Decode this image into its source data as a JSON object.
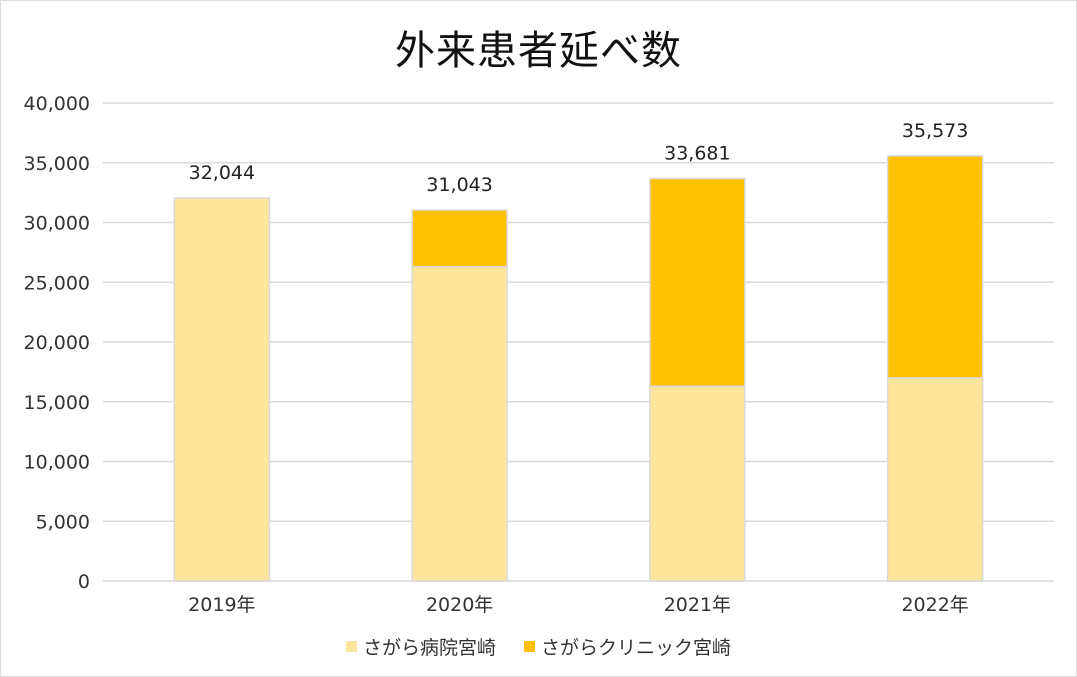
{
  "chart_data": {
    "type": "bar",
    "stacked": true,
    "title": "外来患者延べ数",
    "xlabel": "",
    "ylabel": "",
    "categories": [
      "2019年",
      "2020年",
      "2021年",
      "2022年"
    ],
    "series": [
      {
        "name": "さがら病院宮崎",
        "color": "#fde59b",
        "values": [
          32044,
          26300,
          16300,
          17000
        ]
      },
      {
        "name": "さがらクリニック宮崎",
        "color": "#ffc000",
        "values": [
          0,
          4743,
          17381,
          18573
        ]
      }
    ],
    "totals": [
      32044,
      31043,
      33681,
      35573
    ],
    "total_labels": [
      "32,044",
      "31,043",
      "33,681",
      "35,573"
    ],
    "ylim": [
      0,
      40000
    ],
    "yticks": [
      0,
      5000,
      10000,
      15000,
      20000,
      25000,
      30000,
      35000,
      40000
    ],
    "ytick_labels": [
      "0",
      "5,000",
      "10,000",
      "15,000",
      "20,000",
      "25,000",
      "30,000",
      "35,000",
      "40,000"
    ],
    "grid": true,
    "legend_position": "bottom"
  }
}
